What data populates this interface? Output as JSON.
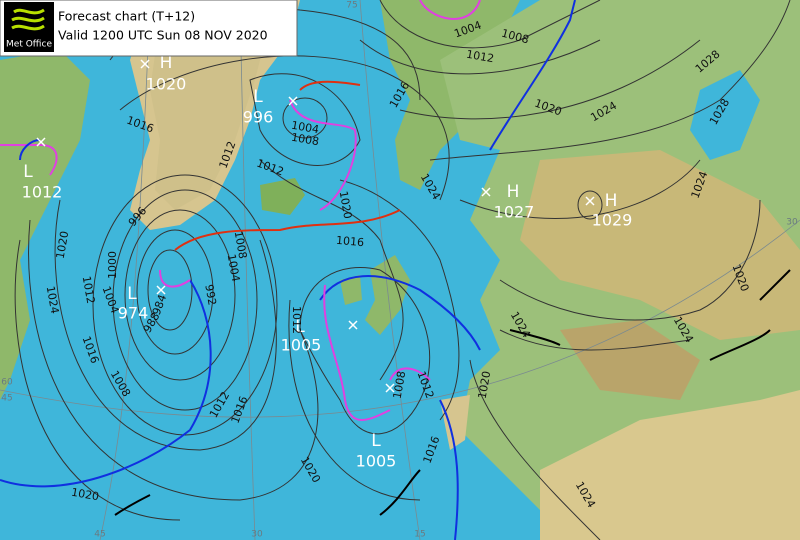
{
  "header": {
    "logo": "Met Office",
    "title": "Forecast chart (T+12)",
    "subtitle": "Valid 1200 UTC Sun 08 NOV 2020"
  },
  "centers": [
    {
      "type": "H",
      "pressure": "1020"
    },
    {
      "type": "L",
      "pressure": "996"
    },
    {
      "type": "L",
      "pressure": "1012"
    },
    {
      "type": "L",
      "pressure": "974"
    },
    {
      "type": "L",
      "pressure": "1005"
    },
    {
      "type": "L",
      "pressure": "1005"
    },
    {
      "type": "H",
      "pressure": "1027"
    },
    {
      "type": "H",
      "pressure": "1029"
    }
  ],
  "isobar_labels": [
    "1004",
    "1008",
    "1012",
    "1016",
    "1020",
    "1024",
    "1028",
    "1028",
    "1024",
    "1024",
    "1020",
    "1016",
    "1012",
    "1012",
    "1016",
    "996",
    "1000",
    "1004",
    "1008",
    "1012",
    "1016",
    "1020",
    "1024",
    "1012",
    "1016",
    "1020",
    "1020",
    "1008",
    "1012",
    "1016",
    "1020",
    "1024",
    "1024",
    "1024",
    "1020",
    "1004",
    "1008",
    "1008",
    "1004",
    "992",
    "988",
    "984",
    "1012"
  ],
  "graticule_labels": [
    "45",
    "30",
    "15",
    "30",
    "60",
    "45",
    "75"
  ]
}
